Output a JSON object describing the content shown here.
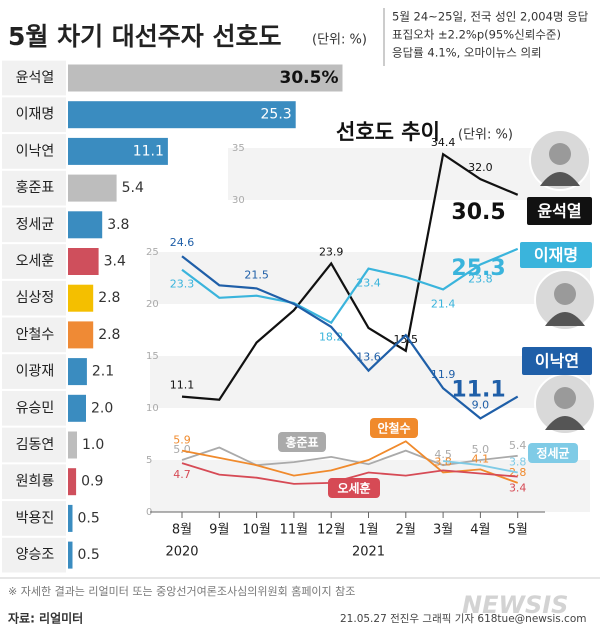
{
  "chart_data": [
    {
      "type": "bar",
      "orientation": "horizontal",
      "title": "5월 차기 대선주자 선호도",
      "unit": "(단위: %)",
      "notes": [
        "5월 24~25일, 전국 성인 2,004명 응답",
        "표집오차 ±2.2%p(95%신뢰수준)",
        "응답률 4.1%, 오마이뉴스 의뢰"
      ],
      "categories": [
        "윤석열",
        "이재명",
        "이낙연",
        "홍준표",
        "정세균",
        "오세훈",
        "심상정",
        "안철수",
        "이광재",
        "유승민",
        "김동연",
        "원희룡",
        "박용진",
        "양승조"
      ],
      "values": [
        30.5,
        25.3,
        11.1,
        5.4,
        3.8,
        3.4,
        2.8,
        2.8,
        2.1,
        2.0,
        1.0,
        0.9,
        0.5,
        0.5
      ],
      "value_labels": [
        "30.5%",
        "25.3",
        "11.1",
        "5.4",
        "3.8",
        "3.4",
        "2.8",
        "2.8",
        "2.1",
        "2.0",
        "1.0",
        "0.9",
        "0.5",
        "0.5"
      ],
      "colors": [
        "#bdbdbd",
        "#3a8cc0",
        "#3a8cc0",
        "#bdbdbd",
        "#3a8cc0",
        "#cf4f5c",
        "#f4bf00",
        "#ef8a35",
        "#3a8cc0",
        "#3a8cc0",
        "#bdbdbd",
        "#cf4f5c",
        "#3a8cc0",
        "#3a8cc0"
      ]
    },
    {
      "type": "line",
      "title": "선호도 추이",
      "unit": "(단위: %)",
      "categories": [
        "8월",
        "9월",
        "10월",
        "11월",
        "12월",
        "1월",
        "2월",
        "3월",
        "4월",
        "5월"
      ],
      "year_labels": [
        "2020",
        null,
        null,
        null,
        null,
        "2021",
        null,
        null,
        null,
        null
      ],
      "ylim": [
        0,
        35
      ],
      "yticks": [
        0,
        5,
        10,
        15,
        20,
        25,
        30,
        35
      ],
      "series": [
        {
          "name": "윤석열",
          "color": "#111111",
          "values": [
            11.1,
            10.8,
            16.3,
            19.4,
            23.9,
            17.7,
            15.5,
            34.4,
            32.0,
            30.5
          ],
          "value_labels": [
            "11.1",
            null,
            null,
            null,
            "23.9",
            null,
            "15.5",
            "34.4",
            "32.0",
            "30.5"
          ]
        },
        {
          "name": "이재명",
          "color": "#3ab4dc",
          "values": [
            23.3,
            20.6,
            20.8,
            20.1,
            18.2,
            23.4,
            22.6,
            21.4,
            23.8,
            25.3
          ],
          "value_labels": [
            "23.3",
            null,
            null,
            null,
            "18.2",
            "23.4",
            null,
            "21.4",
            "23.8",
            "25.3"
          ]
        },
        {
          "name": "이낙연",
          "color": "#1f5fa8",
          "values": [
            24.6,
            21.8,
            21.5,
            20.0,
            17.8,
            13.6,
            17.0,
            11.9,
            9.0,
            11.1
          ],
          "value_labels": [
            "24.6",
            null,
            "21.5",
            null,
            null,
            "13.6",
            null,
            "11.9",
            "9.0",
            "11.1"
          ]
        },
        {
          "name": "홍준표",
          "color": "#aaaaaa",
          "values": [
            5.0,
            6.2,
            4.5,
            4.8,
            5.3,
            4.6,
            5.9,
            4.5,
            5.0,
            5.4
          ],
          "value_labels": [
            "5.0",
            null,
            null,
            null,
            null,
            null,
            null,
            "4.5",
            "5.0",
            "5.4"
          ]
        },
        {
          "name": "안철수",
          "color": "#f08a2c",
          "values": [
            5.9,
            5.2,
            4.5,
            3.5,
            4.0,
            5.0,
            6.8,
            3.8,
            4.1,
            2.8
          ],
          "value_labels": [
            "5.9",
            null,
            null,
            null,
            null,
            null,
            null,
            "3.8",
            "4.1",
            "2.8"
          ]
        },
        {
          "name": "오세훈",
          "color": "#d64a55",
          "values": [
            4.7,
            3.6,
            3.3,
            2.7,
            2.8,
            3.8,
            3.5,
            4.0,
            3.7,
            3.4
          ],
          "value_labels": [
            "4.7",
            null,
            null,
            null,
            null,
            null,
            null,
            null,
            null,
            "3.4"
          ]
        },
        {
          "name": "정세균",
          "color": "#7fcbe6",
          "values": [
            null,
            null,
            null,
            null,
            null,
            null,
            null,
            4.9,
            4.5,
            3.8
          ],
          "value_labels": [
            null,
            null,
            null,
            null,
            null,
            null,
            null,
            null,
            null,
            "3.8"
          ]
        }
      ]
    }
  ],
  "footer": {
    "note": "※ 자세한 결과는 리얼미터 또는 중앙선거여론조사심의위원회 홈페이지 참조",
    "source": "자료: 리얼미터",
    "credit": "21.05.27 전진우 그래픽 기자 618tue@newsis.com",
    "logo": "NEWSIS"
  }
}
